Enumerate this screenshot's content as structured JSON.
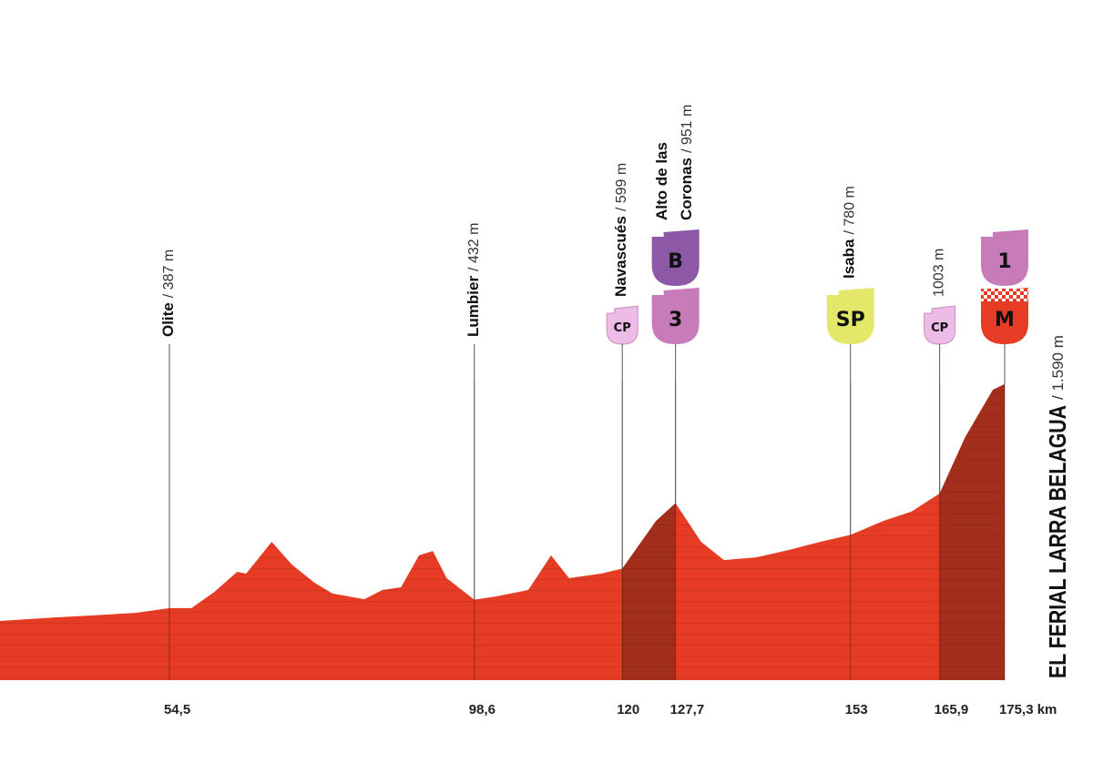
{
  "chart_data": {
    "type": "profile",
    "xlim": [
      30,
      175.3
    ],
    "ylim": [
      0,
      1800
    ],
    "xticks": [
      {
        "value": 54.5,
        "label": "54,5"
      },
      {
        "value": 98.6,
        "label": "98,6"
      },
      120,
      {
        "value": 127.7,
        "label": "127,7"
      },
      153,
      {
        "value": 165.9,
        "label": "165,9"
      },
      {
        "value": 175.3,
        "label": "175,3 km"
      }
    ],
    "profile": {
      "color": "#e63b24",
      "km": [
        30,
        37.9,
        43.2,
        49.8,
        54.5,
        57.7,
        61,
        64.3,
        65.6,
        69.3,
        72.2,
        75.5,
        78.1,
        82.7,
        85.3,
        88,
        90.6,
        92.6,
        94.6,
        98.6,
        101.8,
        106.4,
        109.7,
        112.3,
        116.9,
        120,
        124.9,
        127.7,
        131.4,
        134.7,
        139.4,
        144.6,
        148.6,
        153,
        157.8,
        161.8,
        165.9,
        169.6,
        173.6,
        175.3
      ],
      "elevation": [
        318,
        337,
        347,
        362,
        387,
        387,
        474,
        582,
        572,
        743,
        621,
        523,
        465,
        435,
        484,
        499,
        670,
        694,
        548,
        432,
        450,
        484,
        670,
        548,
        572,
        599,
        856,
        951,
        743,
        645,
        660,
        704,
        743,
        780,
        856,
        905,
        1003,
        1306,
        1560,
        1590
      ]
    },
    "climbs": {
      "color": "#a32e1b",
      "ranges": [
        [
          120,
          127.7
        ],
        [
          165.9,
          175.3
        ]
      ]
    },
    "waypoints": [
      {
        "name_lines": [
          "Olite"
        ],
        "km": 54.5,
        "elevation": 387,
        "elevation_label": "/ 387 m",
        "badges": []
      },
      {
        "name_lines": [
          "Lumbier"
        ],
        "km": 98.6,
        "elevation": 432,
        "elevation_label": "/ 432 m",
        "badges": []
      },
      {
        "name_lines": [
          "Navascués"
        ],
        "km": 120,
        "elevation": 599,
        "elevation_label": "/ 599 m",
        "badges": [
          {
            "text": "CP",
            "color": "#ecbbe6",
            "text_color": "#4a2346",
            "size": "small"
          }
        ]
      },
      {
        "name_lines": [
          "Alto de las",
          "Coronas"
        ],
        "km": 127.7,
        "elevation": 951,
        "elevation_label": "/ 951 m",
        "badges": [
          {
            "text": "3",
            "color": "#c77bb8",
            "text_color": "#ffffff",
            "size": "large"
          },
          {
            "text": "B",
            "color": "#8d58a6",
            "text_color": "#ffffff",
            "size": "large"
          }
        ]
      },
      {
        "name_lines": [
          "Isaba"
        ],
        "km": 153,
        "elevation": 780,
        "elevation_label": "/ 780 m",
        "badges": [
          {
            "text": "SP",
            "color": "#e3e86a",
            "text_color": "#222222",
            "size": "large"
          }
        ]
      },
      {
        "name_lines": [],
        "km": 165.9,
        "elevation": 1003,
        "elevation_label": "1003 m",
        "badges": [
          {
            "text": "CP",
            "color": "#ecbbe6",
            "text_color": "#4a2346",
            "size": "small"
          }
        ]
      }
    ],
    "finish": {
      "name": "EL FERIAL LARRA BELAGUA",
      "km": 175.3,
      "elevation": 1590,
      "elevation_label": "/ 1.590 m",
      "badges": [
        {
          "text": "M",
          "color": "#e63b24",
          "text_color": "#ffffff",
          "size": "large",
          "top": "checkered"
        },
        {
          "text": "1",
          "color": "#c77bb8",
          "text_color": "#ffffff",
          "size": "large"
        }
      ]
    }
  }
}
